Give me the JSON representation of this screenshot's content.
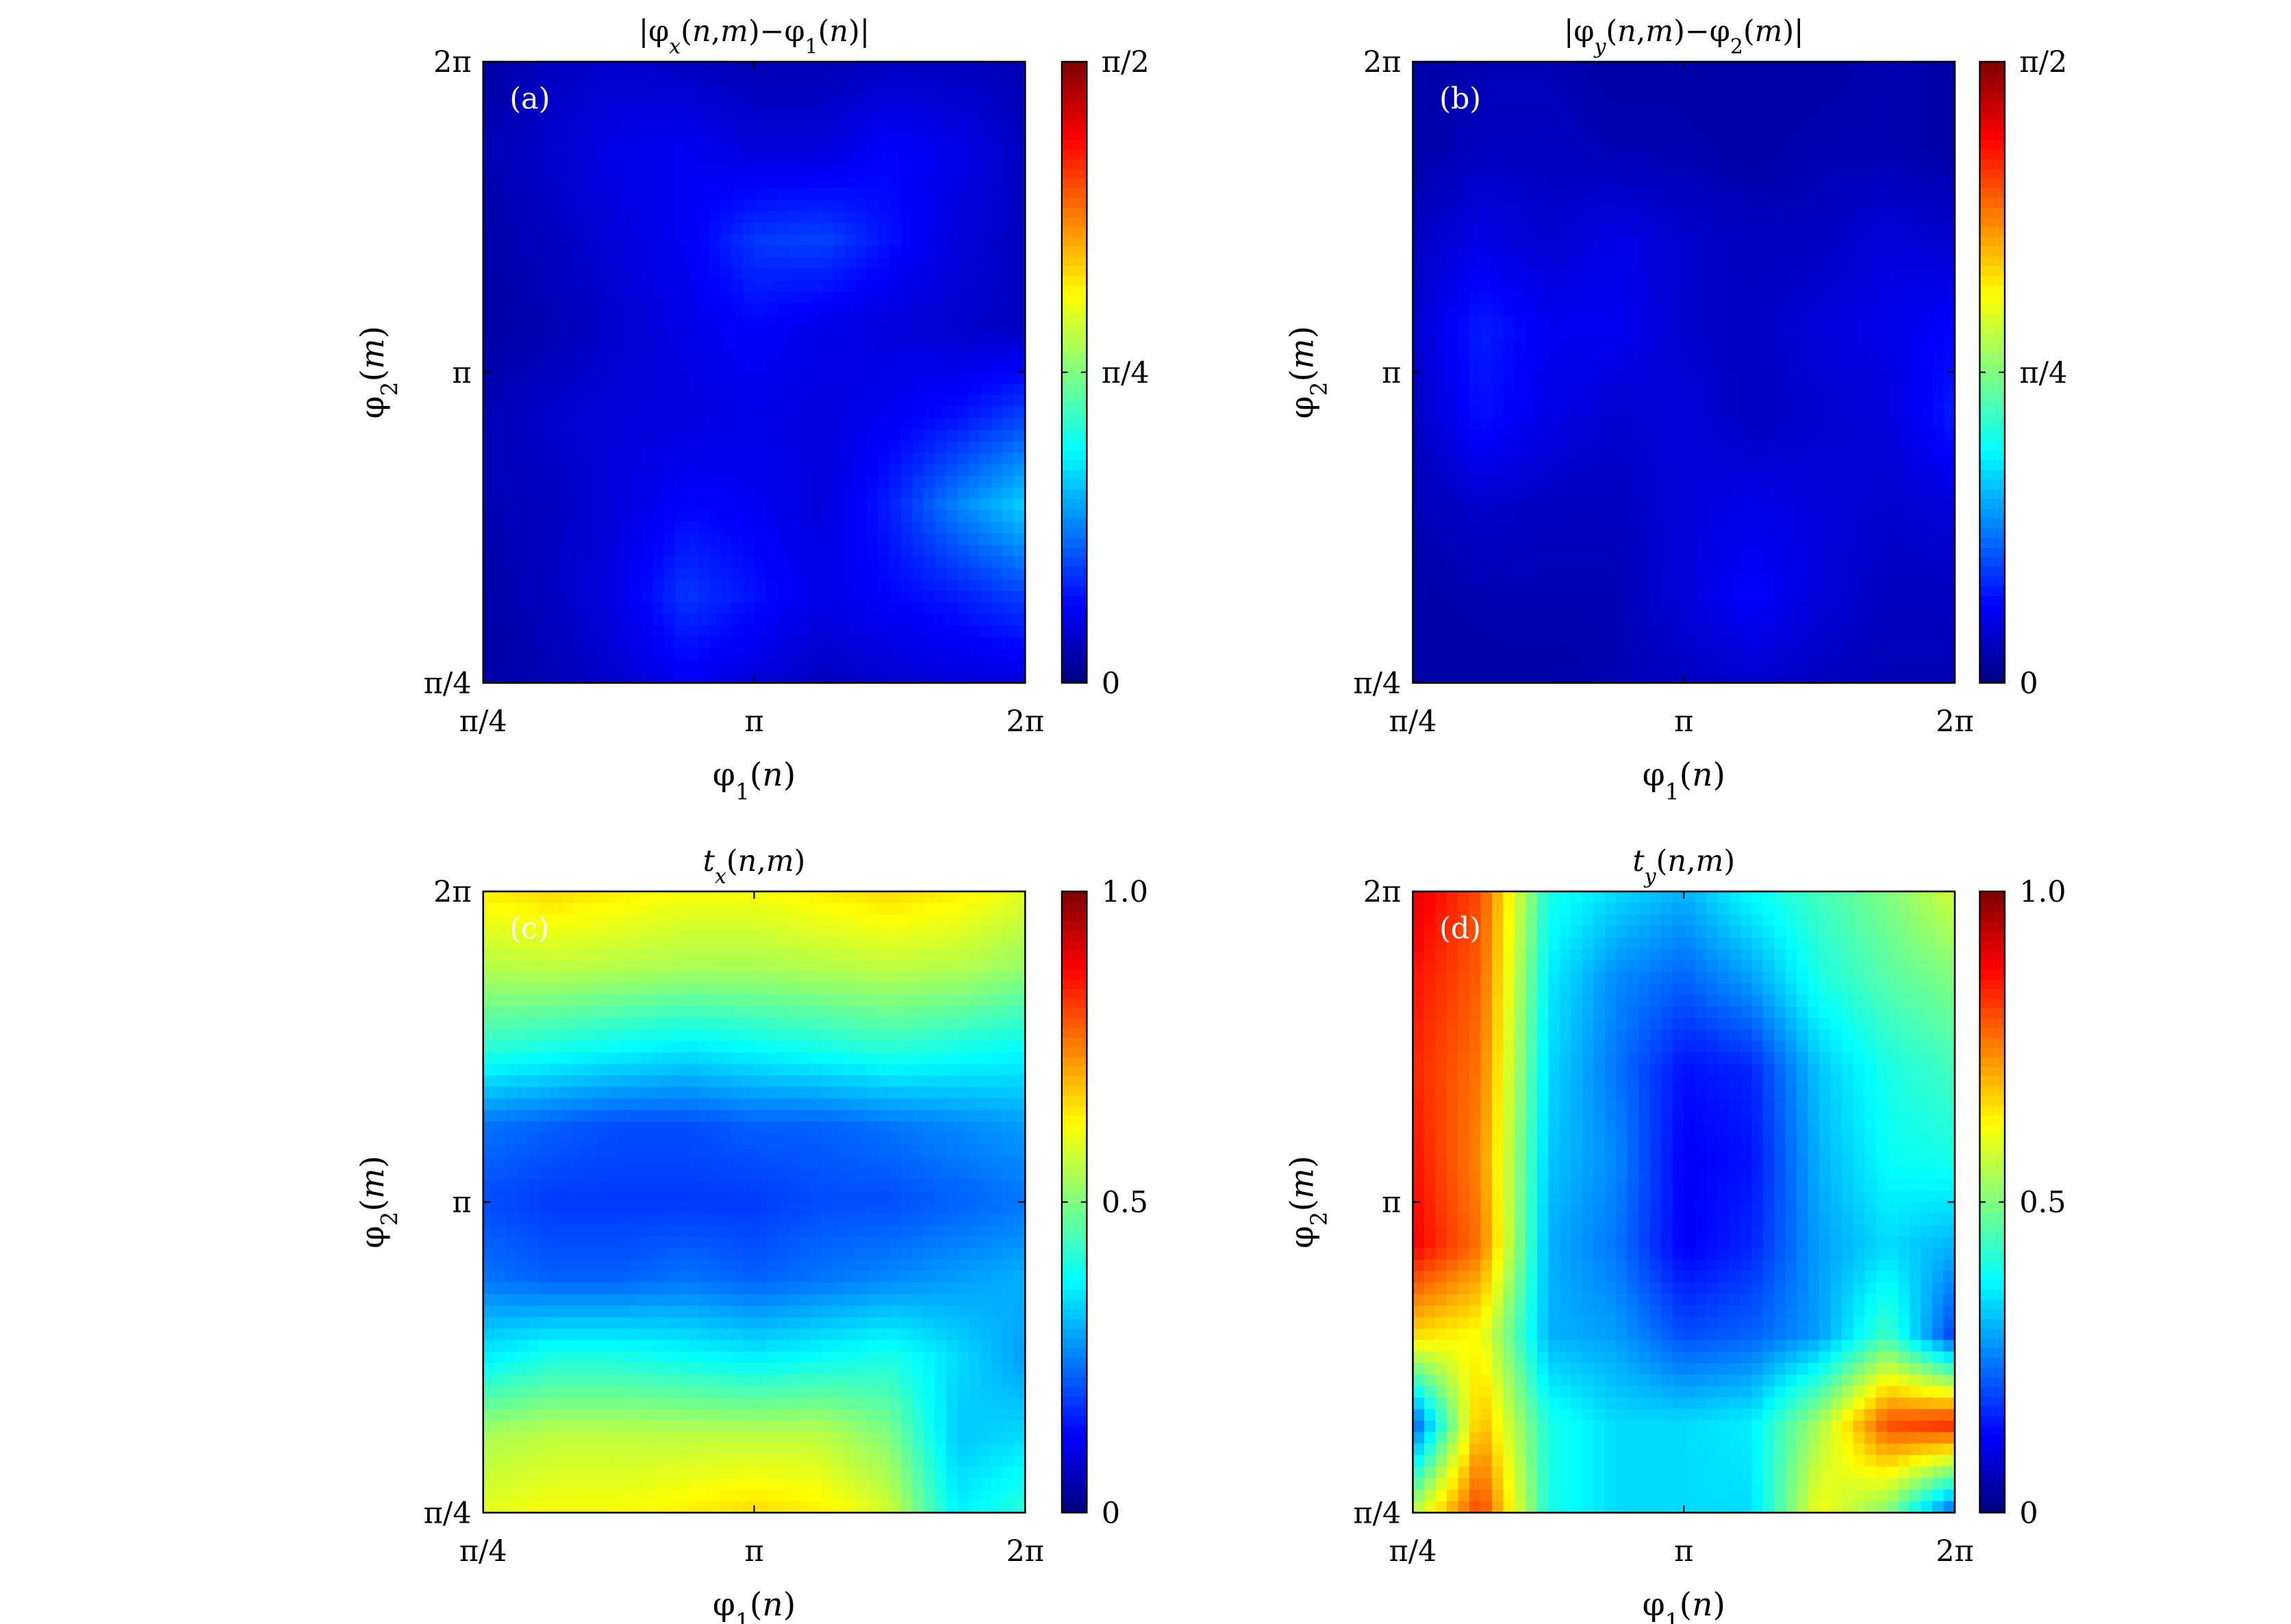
{
  "chart_data": [
    {
      "type": "heatmap",
      "panel": "(a)",
      "title": "|φx(n,m)−φ1(n)|",
      "xlabel": "φ1(n)",
      "ylabel": "φ2(m)",
      "x_ticks": [
        "π/4",
        "π",
        "2π"
      ],
      "y_ticks": [
        "π/4",
        "π",
        "2π"
      ],
      "colorbar": {
        "range": [
          0,
          1.5708
        ],
        "ticks": [
          "0",
          "π/4",
          "π/2"
        ],
        "colormap": "jet"
      },
      "z_grid_rows_top_to_bottom": [
        [
          0.06,
          0.1,
          0.12,
          0.1,
          0.08,
          0.08,
          0.1,
          0.1,
          0.08
        ],
        [
          0.08,
          0.12,
          0.16,
          0.18,
          0.14,
          0.14,
          0.2,
          0.16,
          0.1
        ],
        [
          0.06,
          0.1,
          0.14,
          0.18,
          0.28,
          0.3,
          0.22,
          0.14,
          0.1
        ],
        [
          0.06,
          0.08,
          0.12,
          0.16,
          0.2,
          0.16,
          0.14,
          0.12,
          0.1
        ],
        [
          0.08,
          0.12,
          0.14,
          0.14,
          0.16,
          0.14,
          0.18,
          0.22,
          0.3
        ],
        [
          0.08,
          0.1,
          0.14,
          0.2,
          0.18,
          0.14,
          0.24,
          0.4,
          0.52
        ],
        [
          0.06,
          0.1,
          0.16,
          0.28,
          0.22,
          0.16,
          0.2,
          0.24,
          0.3
        ],
        [
          0.06,
          0.08,
          0.12,
          0.18,
          0.14,
          0.1,
          0.12,
          0.14,
          0.14
        ]
      ]
    },
    {
      "type": "heatmap",
      "panel": "(b)",
      "title": "|φy(n,m)−φ2(m)|",
      "xlabel": "φ1(n)",
      "ylabel": "φ2(m)",
      "x_ticks": [
        "π/4",
        "π",
        "2π"
      ],
      "y_ticks": [
        "π/4",
        "π",
        "2π"
      ],
      "colorbar": {
        "range": [
          0,
          1.5708
        ],
        "ticks": [
          "0",
          "π/4",
          "π/2"
        ],
        "colormap": "jet"
      },
      "z_grid_rows_top_to_bottom": [
        [
          0.06,
          0.08,
          0.08,
          0.06,
          0.06,
          0.06,
          0.06,
          0.08,
          0.06
        ],
        [
          0.06,
          0.1,
          0.1,
          0.08,
          0.08,
          0.06,
          0.08,
          0.08,
          0.06
        ],
        [
          0.1,
          0.16,
          0.12,
          0.16,
          0.12,
          0.1,
          0.1,
          0.14,
          0.12
        ],
        [
          0.12,
          0.24,
          0.18,
          0.18,
          0.12,
          0.1,
          0.14,
          0.16,
          0.2
        ],
        [
          0.1,
          0.22,
          0.16,
          0.12,
          0.14,
          0.1,
          0.12,
          0.14,
          0.24
        ],
        [
          0.08,
          0.12,
          0.1,
          0.1,
          0.14,
          0.16,
          0.14,
          0.12,
          0.14
        ],
        [
          0.06,
          0.08,
          0.08,
          0.08,
          0.14,
          0.2,
          0.14,
          0.1,
          0.1
        ],
        [
          0.06,
          0.06,
          0.06,
          0.08,
          0.1,
          0.12,
          0.1,
          0.08,
          0.08
        ]
      ]
    },
    {
      "type": "heatmap",
      "panel": "(c)",
      "title": "tx(n,m)",
      "xlabel": "φ1(n)",
      "ylabel": "φ2(m)",
      "x_ticks": [
        "π/4",
        "π",
        "2π"
      ],
      "y_ticks": [
        "π/4",
        "π",
        "2π"
      ],
      "colorbar": {
        "range": [
          0,
          1.0
        ],
        "ticks": [
          "0",
          "0.5",
          "1.0"
        ],
        "colormap": "jet"
      },
      "z_grid_rows_top_to_bottom": [
        [
          0.64,
          0.66,
          0.64,
          0.62,
          0.62,
          0.64,
          0.66,
          0.64,
          0.6
        ],
        [
          0.55,
          0.56,
          0.55,
          0.54,
          0.54,
          0.55,
          0.56,
          0.55,
          0.52
        ],
        [
          0.42,
          0.4,
          0.38,
          0.36,
          0.38,
          0.4,
          0.42,
          0.4,
          0.38
        ],
        [
          0.24,
          0.22,
          0.2,
          0.2,
          0.22,
          0.22,
          0.24,
          0.26,
          0.28
        ],
        [
          0.2,
          0.18,
          0.18,
          0.18,
          0.18,
          0.2,
          0.2,
          0.22,
          0.24
        ],
        [
          0.24,
          0.22,
          0.22,
          0.24,
          0.22,
          0.24,
          0.26,
          0.28,
          0.3
        ],
        [
          0.36,
          0.4,
          0.4,
          0.38,
          0.36,
          0.38,
          0.4,
          0.34,
          0.28
        ],
        [
          0.54,
          0.56,
          0.56,
          0.56,
          0.56,
          0.56,
          0.5,
          0.32,
          0.34
        ],
        [
          0.6,
          0.62,
          0.62,
          0.64,
          0.66,
          0.64,
          0.58,
          0.36,
          0.42
        ]
      ]
    },
    {
      "type": "heatmap",
      "panel": "(d)",
      "title": "ty(n,m)",
      "xlabel": "φ1(n)",
      "ylabel": "φ2(m)",
      "x_ticks": [
        "π/4",
        "π",
        "2π"
      ],
      "y_ticks": [
        "π/4",
        "π",
        "2π"
      ],
      "colorbar": {
        "range": [
          0,
          1.0
        ],
        "ticks": [
          "0",
          "0.5",
          "1.0"
        ],
        "colormap": "jet"
      },
      "z_grid_rows_top_to_bottom": [
        [
          0.9,
          0.8,
          0.4,
          0.34,
          0.3,
          0.38,
          0.44,
          0.5,
          0.58
        ],
        [
          0.86,
          0.78,
          0.36,
          0.26,
          0.22,
          0.28,
          0.4,
          0.46,
          0.5
        ],
        [
          0.84,
          0.76,
          0.34,
          0.24,
          0.14,
          0.16,
          0.32,
          0.4,
          0.44
        ],
        [
          0.86,
          0.74,
          0.32,
          0.26,
          0.12,
          0.14,
          0.3,
          0.38,
          0.4
        ],
        [
          0.88,
          0.76,
          0.3,
          0.24,
          0.12,
          0.16,
          0.28,
          0.34,
          0.3
        ],
        [
          0.66,
          0.62,
          0.3,
          0.28,
          0.2,
          0.22,
          0.28,
          0.44,
          0.18
        ],
        [
          0.2,
          0.7,
          0.4,
          0.34,
          0.34,
          0.36,
          0.54,
          0.8,
          0.84
        ],
        [
          0.56,
          0.82,
          0.4,
          0.34,
          0.34,
          0.34,
          0.62,
          0.5,
          0.2
        ]
      ]
    }
  ]
}
